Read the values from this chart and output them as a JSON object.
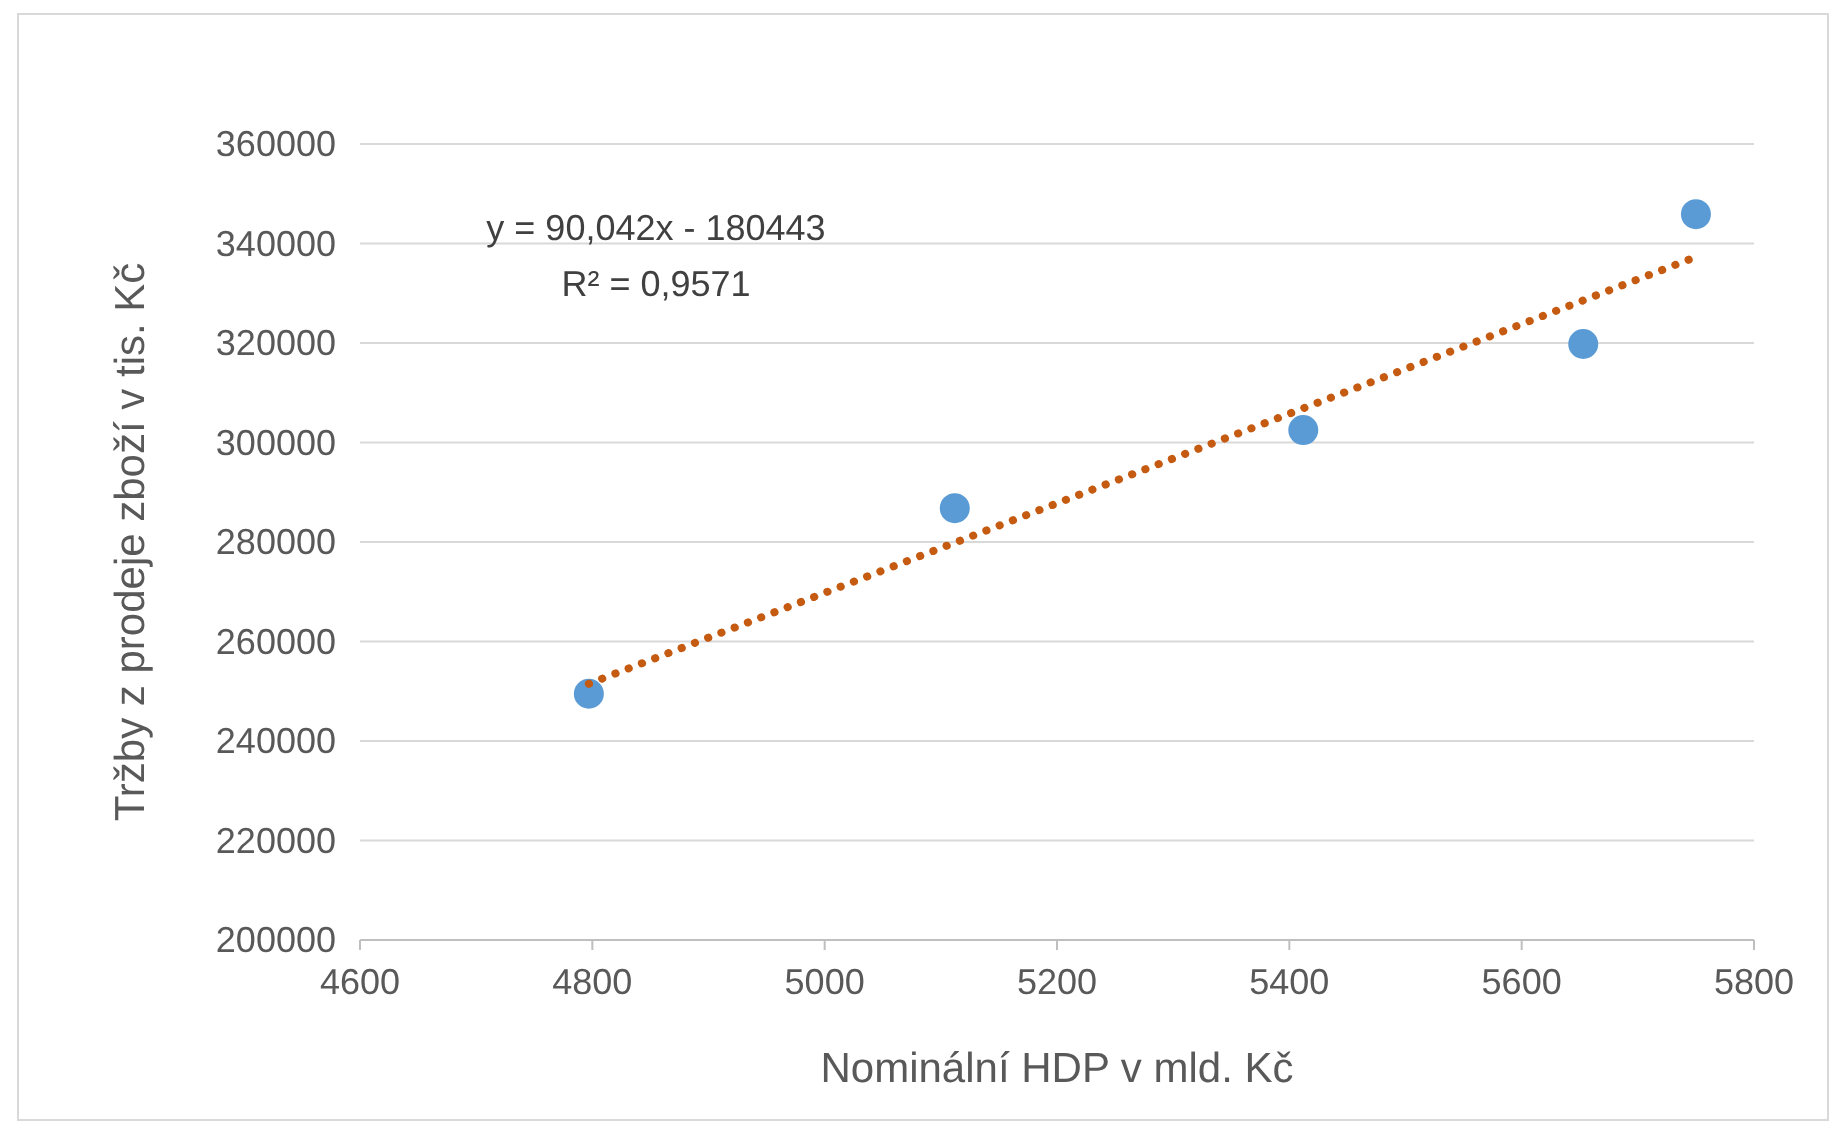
{
  "chart_data": {
    "type": "scatter",
    "xlabel": "Nominální HDP v mld. Kč",
    "ylabel": "Tržby z prodeje zboží v tis. Kč",
    "xlim": [
      4600,
      5800
    ],
    "xticks": [
      4600,
      4800,
      5000,
      5200,
      5400,
      5600,
      5800
    ],
    "ylim": [
      200000,
      360000
    ],
    "yticks": [
      200000,
      220000,
      240000,
      260000,
      280000,
      300000,
      320000,
      340000,
      360000
    ],
    "grid": "y",
    "annotations": [
      "y = 90,042x - 180443",
      "R² = 0,9571"
    ],
    "series": [
      {
        "color": "#5b9bd5",
        "marker": "circle",
        "x": [
          4797,
          5112,
          5412,
          5653,
          5750
        ],
        "values": [
          249500,
          286800,
          302500,
          319800,
          345900
        ]
      },
      {
        "type": "line",
        "color": "#c55a11",
        "line_style": "dotted",
        "marker": "none",
        "x": [
          4797,
          5750
        ],
        "values": [
          251500,
          337300
        ]
      }
    ]
  }
}
